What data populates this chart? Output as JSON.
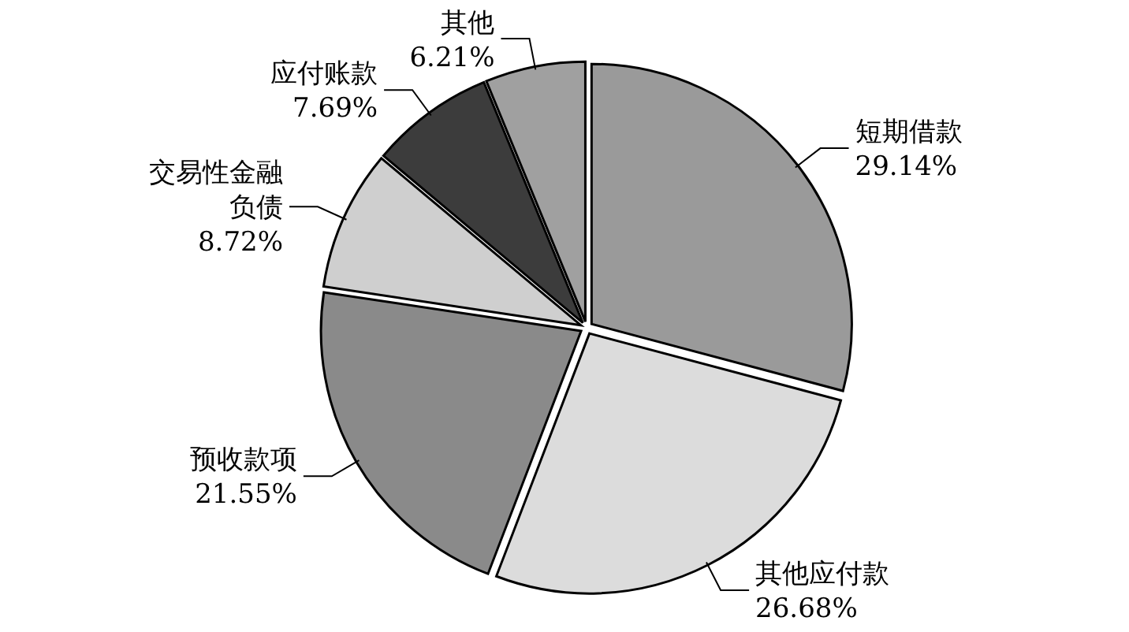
{
  "chart_data": {
    "type": "pie",
    "categories": [
      "短期借款",
      "其他应付款",
      "预收款项",
      "交易性金融负债",
      "应付账款",
      "其他"
    ],
    "values": [
      29.14,
      26.68,
      21.55,
      8.72,
      7.69,
      6.21
    ],
    "value_labels": [
      "29.14%",
      "26.68%",
      "21.55%",
      "8.72%",
      "7.69%",
      "6.21%"
    ],
    "colors": [
      "#9a9a9a",
      "#dcdcdc",
      "#8a8a8a",
      "#cfcfcf",
      "#3c3c3c",
      "#a0a0a0"
    ]
  }
}
